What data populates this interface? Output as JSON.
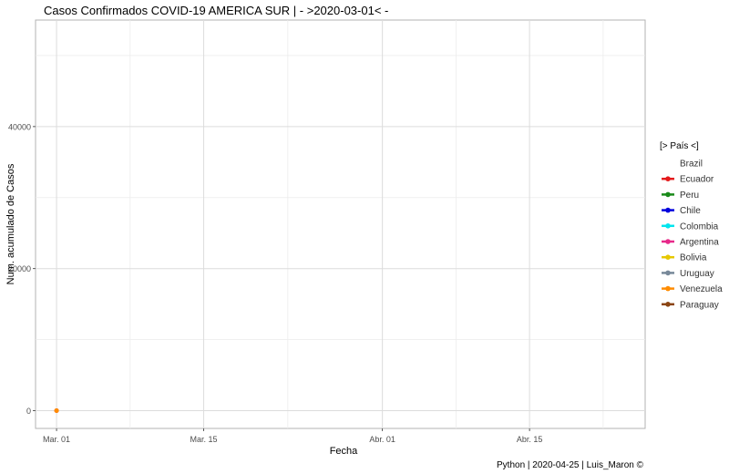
{
  "chart_data": {
    "type": "line",
    "title": "Casos Confirmados COVID-19 AMERICA SUR | - >2020-03-01< -",
    "xlabel": "Fecha",
    "ylabel": "Num. acumulado de Casos",
    "caption": "Python | 2020-04-25 | Luis_Maron ©",
    "x_axis": {
      "type": "date",
      "range": [
        "2020-02-28",
        "2020-04-26"
      ],
      "ticks": [
        "2020-03-01",
        "2020-03-15",
        "2020-04-01",
        "2020-04-15"
      ],
      "tick_labels": [
        "Mar. 01",
        "Mar. 15",
        "Abr. 01",
        "Abr. 15"
      ],
      "minor_ticks": [
        "2020-03-08",
        "2020-03-23",
        "2020-04-08",
        "2020-04-22"
      ]
    },
    "y_axis": {
      "range": [
        -2500,
        55000
      ],
      "ticks": [
        0,
        20000,
        40000
      ],
      "tick_labels": [
        "0",
        "20000",
        "40000"
      ],
      "minor_ticks": [
        10000,
        30000,
        50000
      ]
    },
    "grid": true,
    "legend": {
      "title": "[> País <]",
      "position": "right"
    },
    "series": [
      {
        "name": "Brazil",
        "color": "#ffffff",
        "x": [
          "2020-03-01"
        ],
        "y": [
          2
        ]
      },
      {
        "name": "Ecuador",
        "color": "#e41a1c",
        "x": [
          "2020-03-01"
        ],
        "y": [
          6
        ]
      },
      {
        "name": "Peru",
        "color": "#1a8a1a",
        "x": [],
        "y": []
      },
      {
        "name": "Chile",
        "color": "#0000dd",
        "x": [],
        "y": []
      },
      {
        "name": "Colombia",
        "color": "#00e5ee",
        "x": [],
        "y": []
      },
      {
        "name": "Argentina",
        "color": "#e7298a",
        "x": [],
        "y": []
      },
      {
        "name": "Bolivia",
        "color": "#e6c800",
        "x": [],
        "y": []
      },
      {
        "name": "Uruguay",
        "color": "#778899",
        "x": [],
        "y": []
      },
      {
        "name": "Venezuela",
        "color": "#ff8c00",
        "x": [
          "2020-03-01"
        ],
        "y": [
          0
        ]
      },
      {
        "name": "Paraguay",
        "color": "#8b4513",
        "x": [],
        "y": []
      }
    ]
  }
}
